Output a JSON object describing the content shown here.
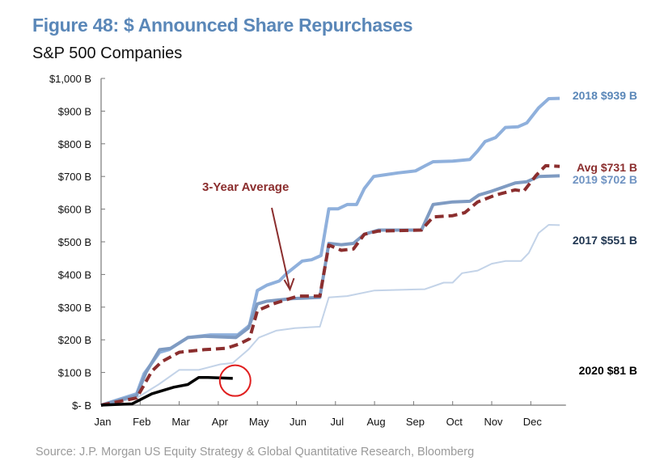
{
  "title": "Figure 48: $ Announced Share Repurchases",
  "subtitle": "S&P 500 Companies",
  "source": "Source: J.P. Morgan US Equity Strategy & Global Quantitative Research, Bloomberg",
  "chart_data": {
    "type": "line",
    "title": "Figure 48: $ Announced Share Repurchases",
    "xlabel": "",
    "ylabel": "",
    "x_unit": "months since Jan 1",
    "xlim": [
      0,
      11.9
    ],
    "ylim": [
      0,
      1000
    ],
    "x_tick_labels": [
      "Jan",
      "Feb",
      "Mar",
      "Apr",
      "May",
      "Jun",
      "Jul",
      "Aug",
      "Sep",
      "Oct",
      "Nov",
      "Dec"
    ],
    "y_ticks": [
      0,
      100,
      200,
      300,
      400,
      500,
      600,
      700,
      800,
      900,
      1000
    ],
    "y_tick_labels": [
      "$- B",
      "$100 B",
      "$200 B",
      "$300 B",
      "$400 B",
      "$500 B",
      "$600 B",
      "$700 B",
      "$800 B",
      "$900 B",
      "$1,000 B"
    ],
    "grid": false,
    "series": [
      {
        "name": "2017",
        "end_label": "2017  $551 B",
        "color": "#c3d3e8",
        "label_color": "#1f3550",
        "width": 2,
        "dashed": false,
        "points": [
          [
            0,
            0
          ],
          [
            0.91,
            22
          ],
          [
            1.47,
            63
          ],
          [
            2.0,
            108
          ],
          [
            2.5,
            108
          ],
          [
            3.05,
            125
          ],
          [
            3.37,
            129
          ],
          [
            3.77,
            170
          ],
          [
            4.04,
            207
          ],
          [
            4.48,
            228
          ],
          [
            4.96,
            236
          ],
          [
            5.6,
            240
          ],
          [
            5.83,
            330
          ],
          [
            6.3,
            334
          ],
          [
            7.0,
            351
          ],
          [
            8.29,
            355
          ],
          [
            8.77,
            375
          ],
          [
            9.0,
            375
          ],
          [
            9.24,
            404
          ],
          [
            9.64,
            412
          ],
          [
            10.0,
            433
          ],
          [
            10.35,
            441
          ],
          [
            10.75,
            441
          ],
          [
            10.95,
            466
          ],
          [
            11.2,
            527
          ],
          [
            11.46,
            552
          ],
          [
            11.74,
            551
          ]
        ]
      },
      {
        "name": "2018",
        "end_label": "2018  $939 B",
        "color": "#8fb0dc",
        "label_color": "#5a87b8",
        "width": 4,
        "dashed": false,
        "points": [
          [
            0,
            0
          ],
          [
            0.91,
            35
          ],
          [
            1.1,
            96
          ],
          [
            1.5,
            162
          ],
          [
            1.74,
            170
          ],
          [
            2.22,
            207
          ],
          [
            2.8,
            215
          ],
          [
            3.5,
            215
          ],
          [
            3.8,
            244
          ],
          [
            4.0,
            351
          ],
          [
            4.24,
            367
          ],
          [
            4.56,
            380
          ],
          [
            4.76,
            404
          ],
          [
            5.15,
            441
          ],
          [
            5.39,
            445
          ],
          [
            5.63,
            458
          ],
          [
            5.83,
            601
          ],
          [
            6.07,
            601
          ],
          [
            6.3,
            614
          ],
          [
            6.54,
            614
          ],
          [
            6.74,
            663
          ],
          [
            6.98,
            700
          ],
          [
            7.2,
            704
          ],
          [
            7.6,
            711
          ],
          [
            8.05,
            717
          ],
          [
            8.3,
            733
          ],
          [
            8.5,
            745
          ],
          [
            9.0,
            747
          ],
          [
            9.44,
            752
          ],
          [
            9.64,
            778
          ],
          [
            9.83,
            807
          ],
          [
            10.1,
            819
          ],
          [
            10.35,
            850
          ],
          [
            10.67,
            852
          ],
          [
            10.9,
            864
          ],
          [
            11.2,
            910
          ],
          [
            11.46,
            938
          ],
          [
            11.74,
            939
          ]
        ]
      },
      {
        "name": "2019",
        "end_label": "2019  $702 B",
        "color": "#7f9bc2",
        "label_color": "#6f93c2",
        "width": 4,
        "dashed": false,
        "points": [
          [
            0,
            0
          ],
          [
            0.91,
            30
          ],
          [
            1.15,
            100
          ],
          [
            1.5,
            170
          ],
          [
            1.78,
            174
          ],
          [
            2.22,
            207
          ],
          [
            2.66,
            211
          ],
          [
            3.45,
            207
          ],
          [
            3.77,
            236
          ],
          [
            4.0,
            310
          ],
          [
            4.24,
            318
          ],
          [
            4.88,
            326
          ],
          [
            5.6,
            330
          ],
          [
            5.83,
            495
          ],
          [
            6.15,
            491
          ],
          [
            6.46,
            495
          ],
          [
            6.74,
            523
          ],
          [
            7.1,
            536
          ],
          [
            8.2,
            536
          ],
          [
            8.5,
            614
          ],
          [
            9.0,
            622
          ],
          [
            9.44,
            624
          ],
          [
            9.67,
            643
          ],
          [
            10.0,
            655
          ],
          [
            10.6,
            680
          ],
          [
            10.9,
            684
          ],
          [
            11.2,
            700
          ],
          [
            11.74,
            702
          ]
        ]
      },
      {
        "name": "Avg",
        "end_label": "Avg  $731 B",
        "color": "#8b2e2e",
        "label_color": "#8b2e2e",
        "width": 4,
        "dashed": true,
        "points": [
          [
            0,
            0
          ],
          [
            0.91,
            22
          ],
          [
            1.3,
            104
          ],
          [
            1.55,
            133
          ],
          [
            2.0,
            162
          ],
          [
            2.66,
            170
          ],
          [
            3.2,
            174
          ],
          [
            3.53,
            187
          ],
          [
            3.8,
            203
          ],
          [
            4.0,
            289
          ],
          [
            4.4,
            310
          ],
          [
            5.04,
            334
          ],
          [
            5.6,
            334
          ],
          [
            5.83,
            490
          ],
          [
            6.15,
            474
          ],
          [
            6.46,
            478
          ],
          [
            6.74,
            523
          ],
          [
            7.1,
            533
          ],
          [
            8.2,
            536
          ],
          [
            8.5,
            576
          ],
          [
            9.0,
            580
          ],
          [
            9.31,
            589
          ],
          [
            9.64,
            622
          ],
          [
            10.1,
            643
          ],
          [
            10.6,
            659
          ],
          [
            10.82,
            655
          ],
          [
            11.14,
            704
          ],
          [
            11.38,
            733
          ],
          [
            11.74,
            731
          ]
        ]
      },
      {
        "name": "2020",
        "end_label": "2020  $81 B",
        "color": "#000000",
        "label_color": "#000000",
        "width": 3.5,
        "dashed": false,
        "points": [
          [
            0,
            0
          ],
          [
            0.79,
            4
          ],
          [
            1.3,
            35
          ],
          [
            1.86,
            55
          ],
          [
            2.22,
            63
          ],
          [
            2.5,
            85
          ],
          [
            2.74,
            85
          ],
          [
            3.37,
            82
          ]
        ]
      }
    ],
    "annotations": [
      {
        "text": "3-Year Average",
        "color": "#8b2e2e",
        "arrow_to": [
          5.0,
          334
        ]
      },
      {
        "type": "circle",
        "color": "#e01f1f",
        "at": [
          3.37,
          80
        ]
      }
    ]
  }
}
